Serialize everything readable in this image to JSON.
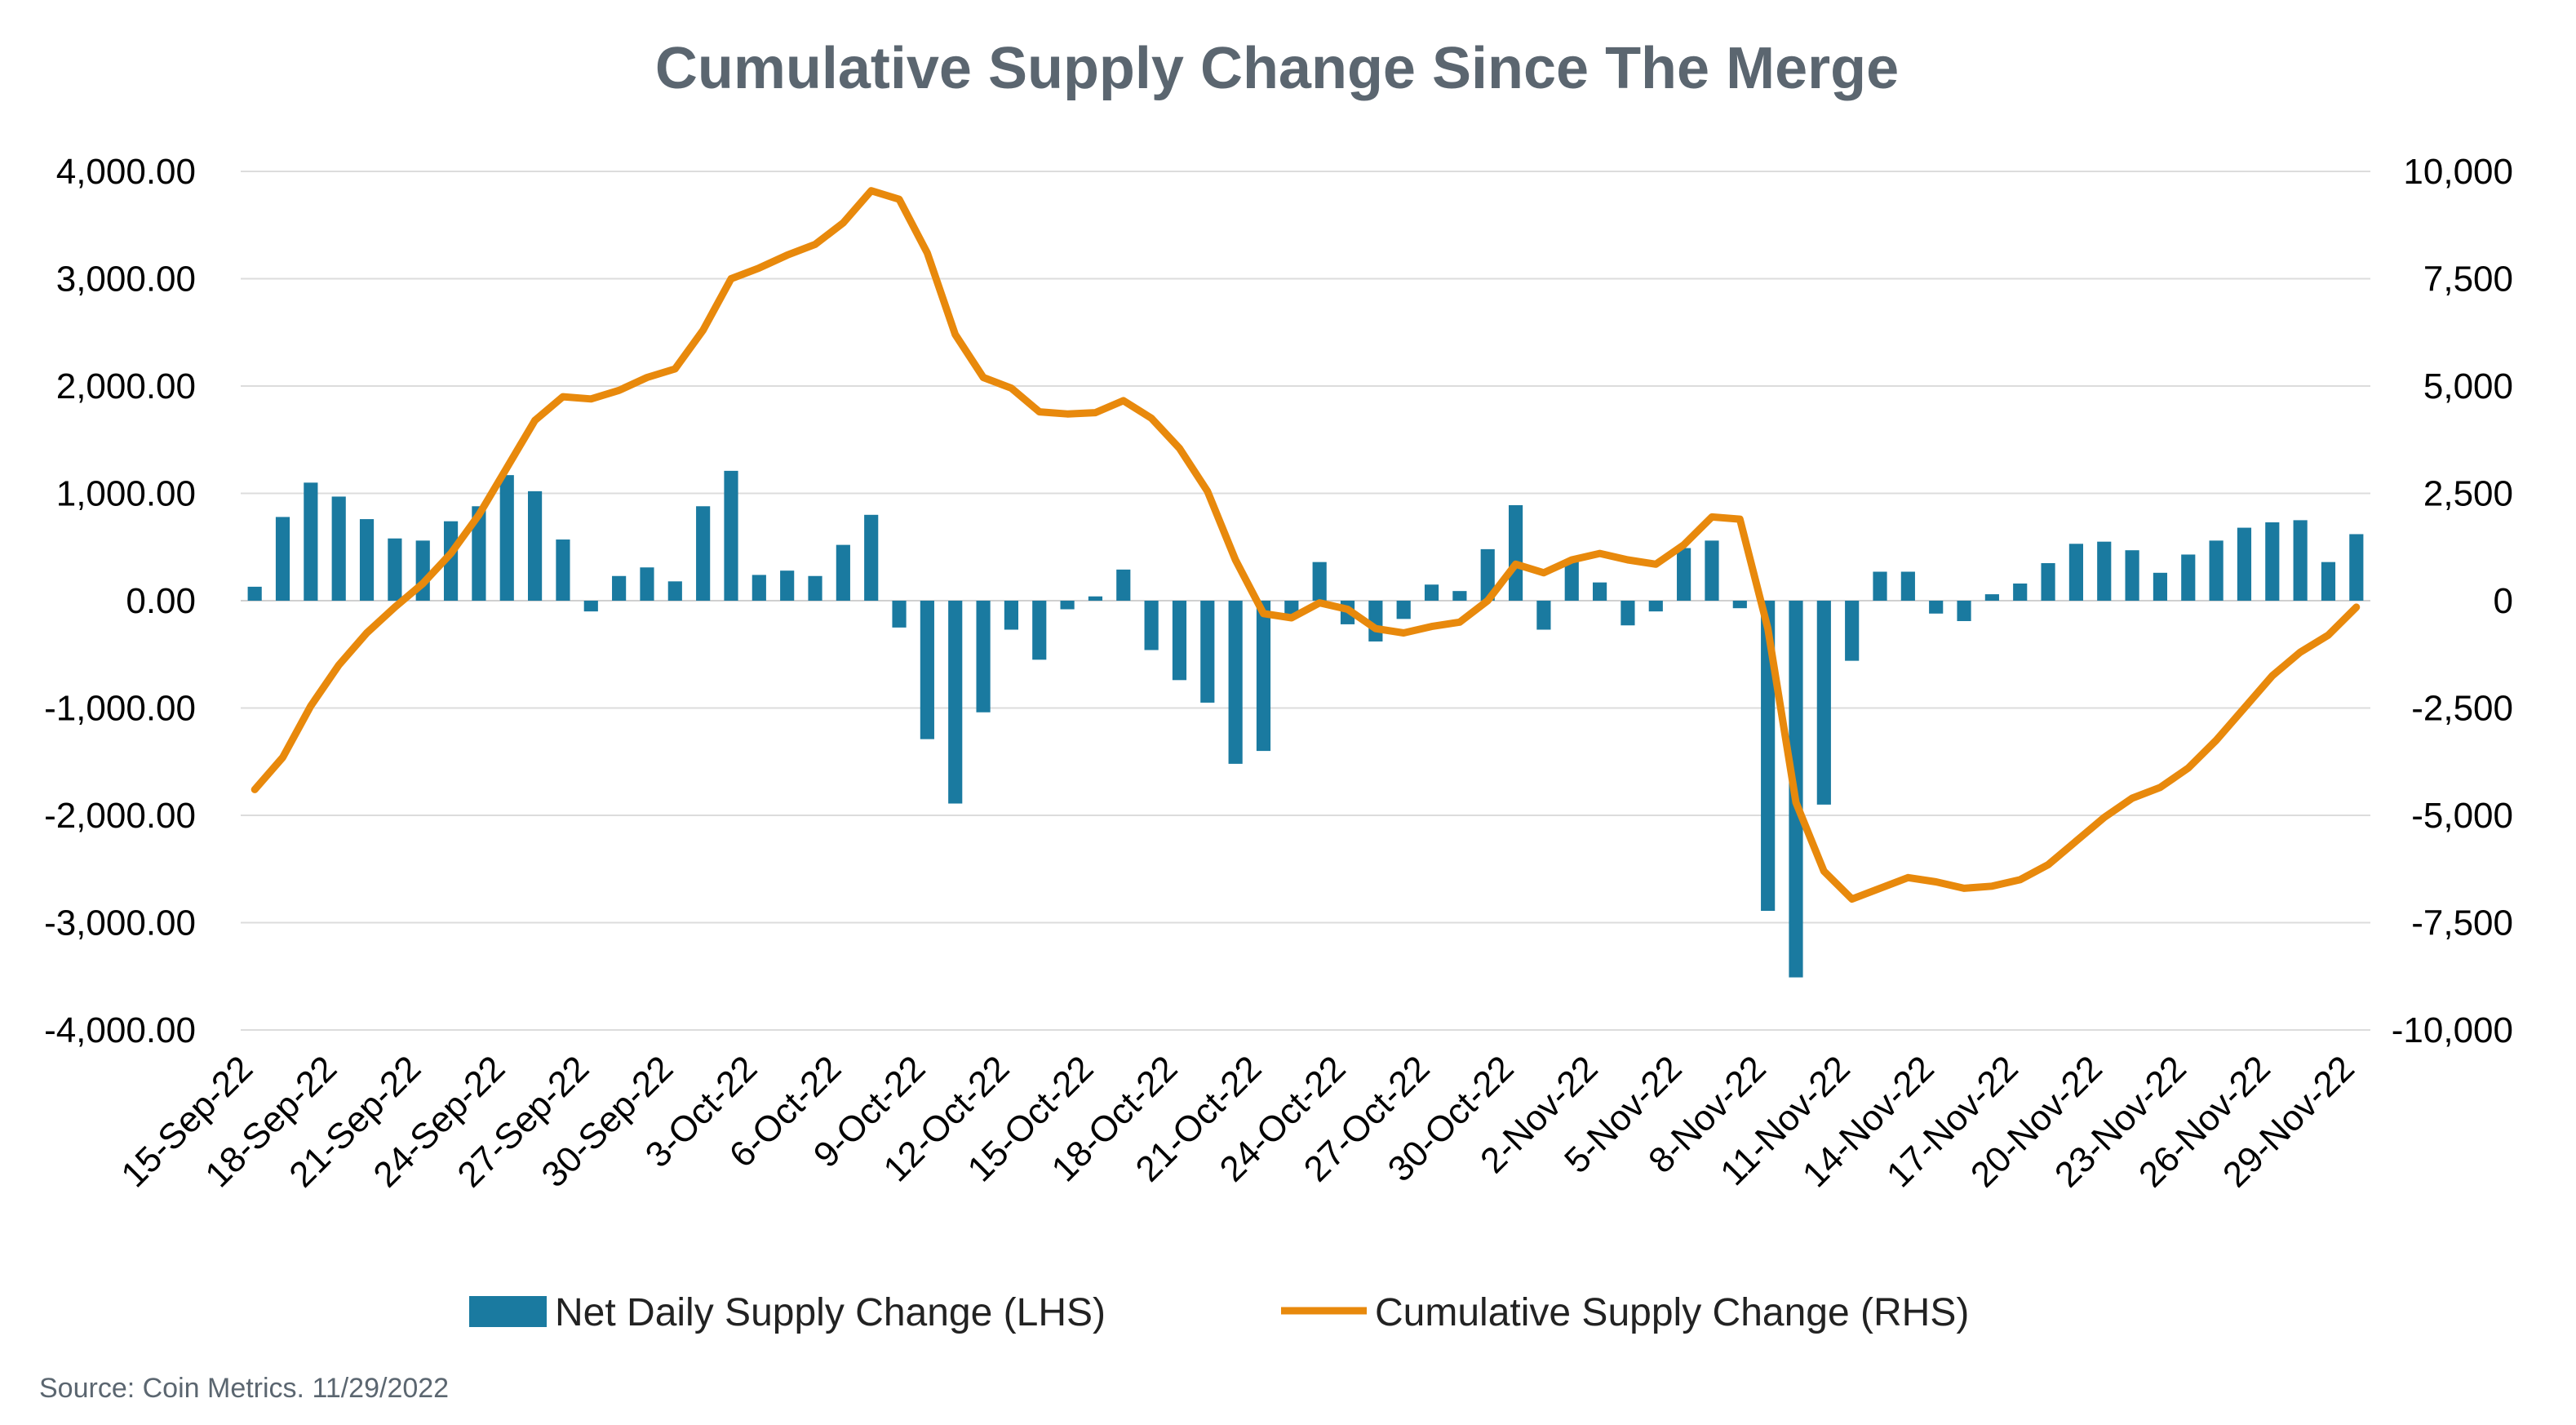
{
  "chart_data": {
    "type": "bar+line",
    "title": "Cumulative Supply Change Since The Merge",
    "source": "Source: Coin Metrics. 11/29/2022",
    "left_axis": {
      "ylim": [
        -4000,
        4000
      ],
      "ticks": [
        4000,
        3000,
        2000,
        1000,
        0,
        -1000,
        -2000,
        -3000,
        -4000
      ],
      "tick_labels": [
        "4,000.00",
        "3,000.00",
        "2,000.00",
        "1,000.00",
        "0.00",
        "-1,000.00",
        "-2,000.00",
        "-3,000.00",
        "-4,000.00"
      ]
    },
    "right_axis": {
      "ylim": [
        -10000,
        10000
      ],
      "ticks": [
        10000,
        7500,
        5000,
        2500,
        0,
        -2500,
        -5000,
        -7500,
        -10000
      ],
      "tick_labels": [
        "10,000",
        "7,500",
        "5,000",
        "2,500",
        "0",
        "-2,500",
        "-5,000",
        "-7,500",
        "-10,000"
      ]
    },
    "x_tick_labels": [
      "15-Sep-22",
      "18-Sep-22",
      "21-Sep-22",
      "24-Sep-22",
      "27-Sep-22",
      "30-Sep-22",
      "3-Oct-22",
      "6-Oct-22",
      "9-Oct-22",
      "12-Oct-22",
      "15-Oct-22",
      "18-Oct-22",
      "21-Oct-22",
      "24-Oct-22",
      "27-Oct-22",
      "30-Oct-22",
      "2-Nov-22",
      "5-Nov-22",
      "8-Nov-22",
      "11-Nov-22",
      "14-Nov-22",
      "17-Nov-22",
      "20-Nov-22",
      "23-Nov-22",
      "26-Nov-22",
      "29-Nov-22"
    ],
    "series": [
      {
        "name": "Net Daily Supply Change (LHS)",
        "type": "bar",
        "axis": "left",
        "color": "#1a7aa0",
        "values": [
          130,
          780,
          1100,
          970,
          760,
          580,
          560,
          740,
          880,
          1170,
          1020,
          570,
          -100,
          230,
          310,
          180,
          880,
          1210,
          240,
          280,
          230,
          520,
          800,
          -250,
          -1290,
          -1890,
          -1040,
          -270,
          -550,
          -80,
          40,
          290,
          -460,
          -740,
          -950,
          -1520,
          -1400,
          -130,
          360,
          -220,
          -380,
          -170,
          150,
          90,
          480,
          890,
          -270,
          380,
          170,
          -230,
          -100,
          490,
          560,
          -70,
          -2890,
          -3510,
          -1900,
          -560,
          270,
          270,
          -120,
          -190,
          60,
          160,
          350,
          530,
          550,
          470,
          260,
          430,
          560,
          680,
          730,
          750,
          360,
          620
        ]
      },
      {
        "name": "Cumulative Supply Change (RHS)",
        "type": "line",
        "axis": "right",
        "color": "#e8890c",
        "values": [
          -4400,
          -3650,
          -2450,
          -1500,
          -750,
          -150,
          400,
          1100,
          2000,
          3100,
          4200,
          4750,
          4700,
          4900,
          5200,
          5400,
          6300,
          7500,
          7750,
          8050,
          8300,
          8800,
          9550,
          9350,
          8100,
          6200,
          5200,
          4950,
          4400,
          4350,
          4380,
          4660,
          4250,
          3550,
          2550,
          950,
          -300,
          -400,
          -50,
          -200,
          -650,
          -750,
          -600,
          -500,
          0,
          850,
          650,
          950,
          1100,
          950,
          850,
          1300,
          1950,
          1900,
          -650,
          -4700,
          -6300,
          -6950,
          -6700,
          -6450,
          -6550,
          -6700,
          -6650,
          -6500,
          -6150,
          -5600,
          -5050,
          -4600,
          -4350,
          -3900,
          -3250,
          -2500,
          -1750,
          -1200,
          -800,
          -150
        ]
      }
    ]
  }
}
